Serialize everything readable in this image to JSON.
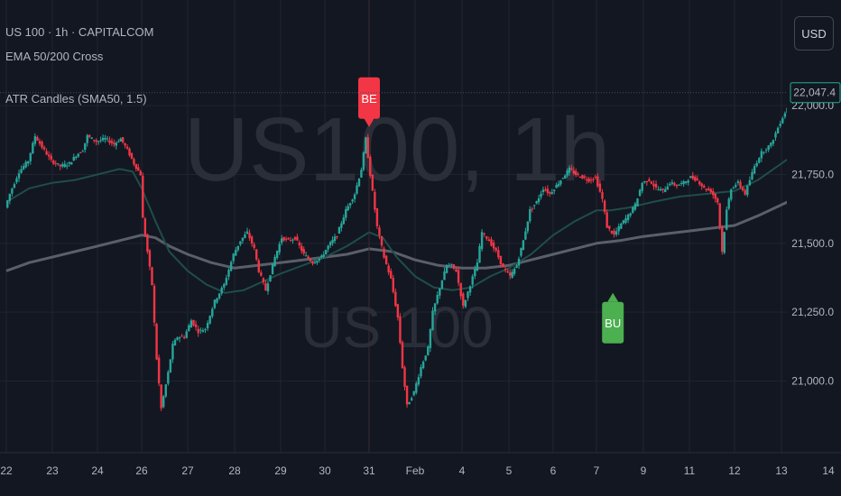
{
  "colors": {
    "background": "#131722",
    "grid": "#1f2430",
    "axis_text": "#b2b5be",
    "up": "#26a69a",
    "down": "#f23645",
    "ema50": "#1f4d4a",
    "ema200": "#5a5f6a",
    "last_price_bg": "#131722",
    "last_price_border": "#22ab94",
    "bear_signal": "#f23645",
    "bull_signal": "#4caf50"
  },
  "header": {
    "symbol_line": "US 100 · 1h · CAPITALCOM",
    "indicator_1": "EMA 50/200 Cross",
    "indicator_2": "ATR Candles (SMA50, 1.5)"
  },
  "currency_button": "USD",
  "watermark": {
    "main": "US100, 1h",
    "sub": "US 100"
  },
  "last_price": {
    "label": "22,047.4",
    "value": 22047.4,
    "partial_label": "22,000.0"
  },
  "chart_data": {
    "type": "candlestick",
    "title": "US 100 · 1h · CAPITALCOM",
    "y_ticks": [
      {
        "label": "21,750.0",
        "value": 21750
      },
      {
        "label": "21,500.0",
        "value": 21500
      },
      {
        "label": "21,250.0",
        "value": 21250
      },
      {
        "label": "21,000.0",
        "value": 21000
      }
    ],
    "x_ticks": [
      {
        "label": "22",
        "t": 0
      },
      {
        "label": "23",
        "t": 1
      },
      {
        "label": "24",
        "t": 2
      },
      {
        "label": "26",
        "t": 3
      },
      {
        "label": "27",
        "t": 4
      },
      {
        "label": "28",
        "t": 5
      },
      {
        "label": "29",
        "t": 6
      },
      {
        "label": "30",
        "t": 7
      },
      {
        "label": "31",
        "t": 8
      },
      {
        "label": "Feb",
        "t": 9
      },
      {
        "label": "4",
        "t": 10
      },
      {
        "label": "5",
        "t": 11
      },
      {
        "label": "6",
        "t": 12
      },
      {
        "label": "7",
        "t": 13
      },
      {
        "label": "9",
        "t": 14
      },
      {
        "label": "11",
        "t": 15
      },
      {
        "label": "12",
        "t": 16
      },
      {
        "label": "13",
        "t": 17
      },
      {
        "label": "14",
        "t": 18
      }
    ],
    "price_path": [
      [
        0.0,
        21630
      ],
      [
        0.1,
        21680
      ],
      [
        0.3,
        21760
      ],
      [
        0.5,
        21800
      ],
      [
        0.65,
        21890
      ],
      [
        0.8,
        21850
      ],
      [
        1.0,
        21800
      ],
      [
        1.2,
        21780
      ],
      [
        1.4,
        21790
      ],
      [
        1.55,
        21820
      ],
      [
        1.7,
        21840
      ],
      [
        1.8,
        21890
      ],
      [
        2.0,
        21870
      ],
      [
        2.2,
        21880
      ],
      [
        2.4,
        21860
      ],
      [
        2.55,
        21880
      ],
      [
        2.7,
        21840
      ],
      [
        2.85,
        21790
      ],
      [
        3.0,
        21750
      ],
      [
        3.05,
        21590
      ],
      [
        3.15,
        21470
      ],
      [
        3.25,
        21350
      ],
      [
        3.3,
        21210
      ],
      [
        3.35,
        21080
      ],
      [
        3.45,
        20900
      ],
      [
        3.6,
        21030
      ],
      [
        3.7,
        21130
      ],
      [
        3.8,
        21160
      ],
      [
        3.95,
        21160
      ],
      [
        4.1,
        21220
      ],
      [
        4.25,
        21180
      ],
      [
        4.4,
        21190
      ],
      [
        4.6,
        21290
      ],
      [
        4.8,
        21350
      ],
      [
        5.0,
        21460
      ],
      [
        5.15,
        21510
      ],
      [
        5.3,
        21540
      ],
      [
        5.45,
        21480
      ],
      [
        5.55,
        21400
      ],
      [
        5.7,
        21330
      ],
      [
        5.9,
        21450
      ],
      [
        6.05,
        21520
      ],
      [
        6.2,
        21510
      ],
      [
        6.35,
        21520
      ],
      [
        6.55,
        21460
      ],
      [
        6.75,
        21430
      ],
      [
        6.95,
        21450
      ],
      [
        7.1,
        21490
      ],
      [
        7.3,
        21530
      ],
      [
        7.5,
        21620
      ],
      [
        7.7,
        21680
      ],
      [
        7.85,
        21770
      ],
      [
        7.95,
        21880
      ],
      [
        8.05,
        21750
      ],
      [
        8.2,
        21560
      ],
      [
        8.35,
        21450
      ],
      [
        8.5,
        21370
      ],
      [
        8.65,
        21230
      ],
      [
        8.75,
        21050
      ],
      [
        8.85,
        20910
      ],
      [
        9.0,
        20960
      ],
      [
        9.15,
        21050
      ],
      [
        9.3,
        21120
      ],
      [
        9.4,
        21250
      ],
      [
        9.55,
        21340
      ],
      [
        9.7,
        21420
      ],
      [
        9.8,
        21420
      ],
      [
        9.9,
        21400
      ],
      [
        10.05,
        21270
      ],
      [
        10.2,
        21350
      ],
      [
        10.35,
        21430
      ],
      [
        10.45,
        21540
      ],
      [
        10.6,
        21510
      ],
      [
        10.75,
        21470
      ],
      [
        10.9,
        21410
      ],
      [
        11.05,
        21380
      ],
      [
        11.2,
        21420
      ],
      [
        11.35,
        21510
      ],
      [
        11.5,
        21620
      ],
      [
        11.65,
        21650
      ],
      [
        11.8,
        21700
      ],
      [
        11.95,
        21680
      ],
      [
        12.1,
        21710
      ],
      [
        12.25,
        21740
      ],
      [
        12.4,
        21770
      ],
      [
        12.55,
        21750
      ],
      [
        12.7,
        21740
      ],
      [
        12.85,
        21730
      ],
      [
        13.0,
        21740
      ],
      [
        13.15,
        21660
      ],
      [
        13.25,
        21560
      ],
      [
        13.4,
        21530
      ],
      [
        13.55,
        21570
      ],
      [
        13.7,
        21600
      ],
      [
        13.85,
        21640
      ],
      [
        14.0,
        21720
      ],
      [
        14.15,
        21730
      ],
      [
        14.3,
        21700
      ],
      [
        14.45,
        21690
      ],
      [
        14.6,
        21720
      ],
      [
        14.75,
        21710
      ],
      [
        14.9,
        21720
      ],
      [
        15.05,
        21740
      ],
      [
        15.2,
        21730
      ],
      [
        15.35,
        21700
      ],
      [
        15.5,
        21690
      ],
      [
        15.65,
        21650
      ],
      [
        15.75,
        21470
      ],
      [
        15.85,
        21620
      ],
      [
        15.95,
        21700
      ],
      [
        16.1,
        21720
      ],
      [
        16.25,
        21680
      ],
      [
        16.45,
        21780
      ],
      [
        16.6,
        21830
      ],
      [
        16.8,
        21860
      ],
      [
        17.0,
        21940
      ],
      [
        17.2,
        22010
      ],
      [
        17.35,
        22050
      ],
      [
        17.5,
        22047
      ]
    ],
    "ema50_path": [
      [
        0.0,
        21650
      ],
      [
        0.5,
        21700
      ],
      [
        1.0,
        21720
      ],
      [
        1.5,
        21730
      ],
      [
        2.0,
        21750
      ],
      [
        2.5,
        21770
      ],
      [
        2.8,
        21760
      ],
      [
        3.0,
        21700
      ],
      [
        3.3,
        21580
      ],
      [
        3.6,
        21470
      ],
      [
        4.0,
        21400
      ],
      [
        4.4,
        21350
      ],
      [
        4.8,
        21320
      ],
      [
        5.2,
        21330
      ],
      [
        5.6,
        21360
      ],
      [
        6.0,
        21390
      ],
      [
        6.5,
        21420
      ],
      [
        7.0,
        21450
      ],
      [
        7.5,
        21490
      ],
      [
        8.0,
        21540
      ],
      [
        8.3,
        21520
      ],
      [
        8.6,
        21450
      ],
      [
        9.0,
        21380
      ],
      [
        9.4,
        21340
      ],
      [
        9.8,
        21330
      ],
      [
        10.2,
        21340
      ],
      [
        10.6,
        21380
      ],
      [
        11.0,
        21410
      ],
      [
        11.5,
        21460
      ],
      [
        12.0,
        21530
      ],
      [
        12.5,
        21580
      ],
      [
        13.0,
        21620
      ],
      [
        13.3,
        21620
      ],
      [
        13.7,
        21630
      ],
      [
        14.2,
        21650
      ],
      [
        14.8,
        21670
      ],
      [
        15.4,
        21680
      ],
      [
        16.0,
        21690
      ],
      [
        16.5,
        21730
      ],
      [
        17.0,
        21790
      ],
      [
        17.5,
        21850
      ]
    ],
    "ema200_path": [
      [
        0.0,
        21400
      ],
      [
        0.5,
        21430
      ],
      [
        1.0,
        21450
      ],
      [
        1.5,
        21470
      ],
      [
        2.0,
        21490
      ],
      [
        2.5,
        21510
      ],
      [
        3.0,
        21530
      ],
      [
        3.3,
        21520
      ],
      [
        3.6,
        21490
      ],
      [
        4.0,
        21460
      ],
      [
        4.5,
        21430
      ],
      [
        5.0,
        21410
      ],
      [
        5.5,
        21420
      ],
      [
        6.0,
        21430
      ],
      [
        6.5,
        21440
      ],
      [
        7.0,
        21450
      ],
      [
        7.5,
        21460
      ],
      [
        8.0,
        21480
      ],
      [
        8.5,
        21470
      ],
      [
        9.0,
        21440
      ],
      [
        9.5,
        21420
      ],
      [
        10.0,
        21410
      ],
      [
        10.5,
        21410
      ],
      [
        11.0,
        21420
      ],
      [
        11.5,
        21440
      ],
      [
        12.0,
        21460
      ],
      [
        12.5,
        21480
      ],
      [
        13.0,
        21500
      ],
      [
        13.5,
        21510
      ],
      [
        14.0,
        21525
      ],
      [
        14.5,
        21535
      ],
      [
        15.0,
        21545
      ],
      [
        15.5,
        21555
      ],
      [
        16.0,
        21565
      ],
      [
        16.5,
        21600
      ],
      [
        17.0,
        21640
      ],
      [
        17.5,
        21680
      ]
    ],
    "signals": [
      {
        "label": "BE",
        "t": 8.0,
        "price": 21880,
        "type": "bear"
      },
      {
        "label": "BU",
        "t": 13.35,
        "price": 21320,
        "type": "bull"
      }
    ]
  }
}
